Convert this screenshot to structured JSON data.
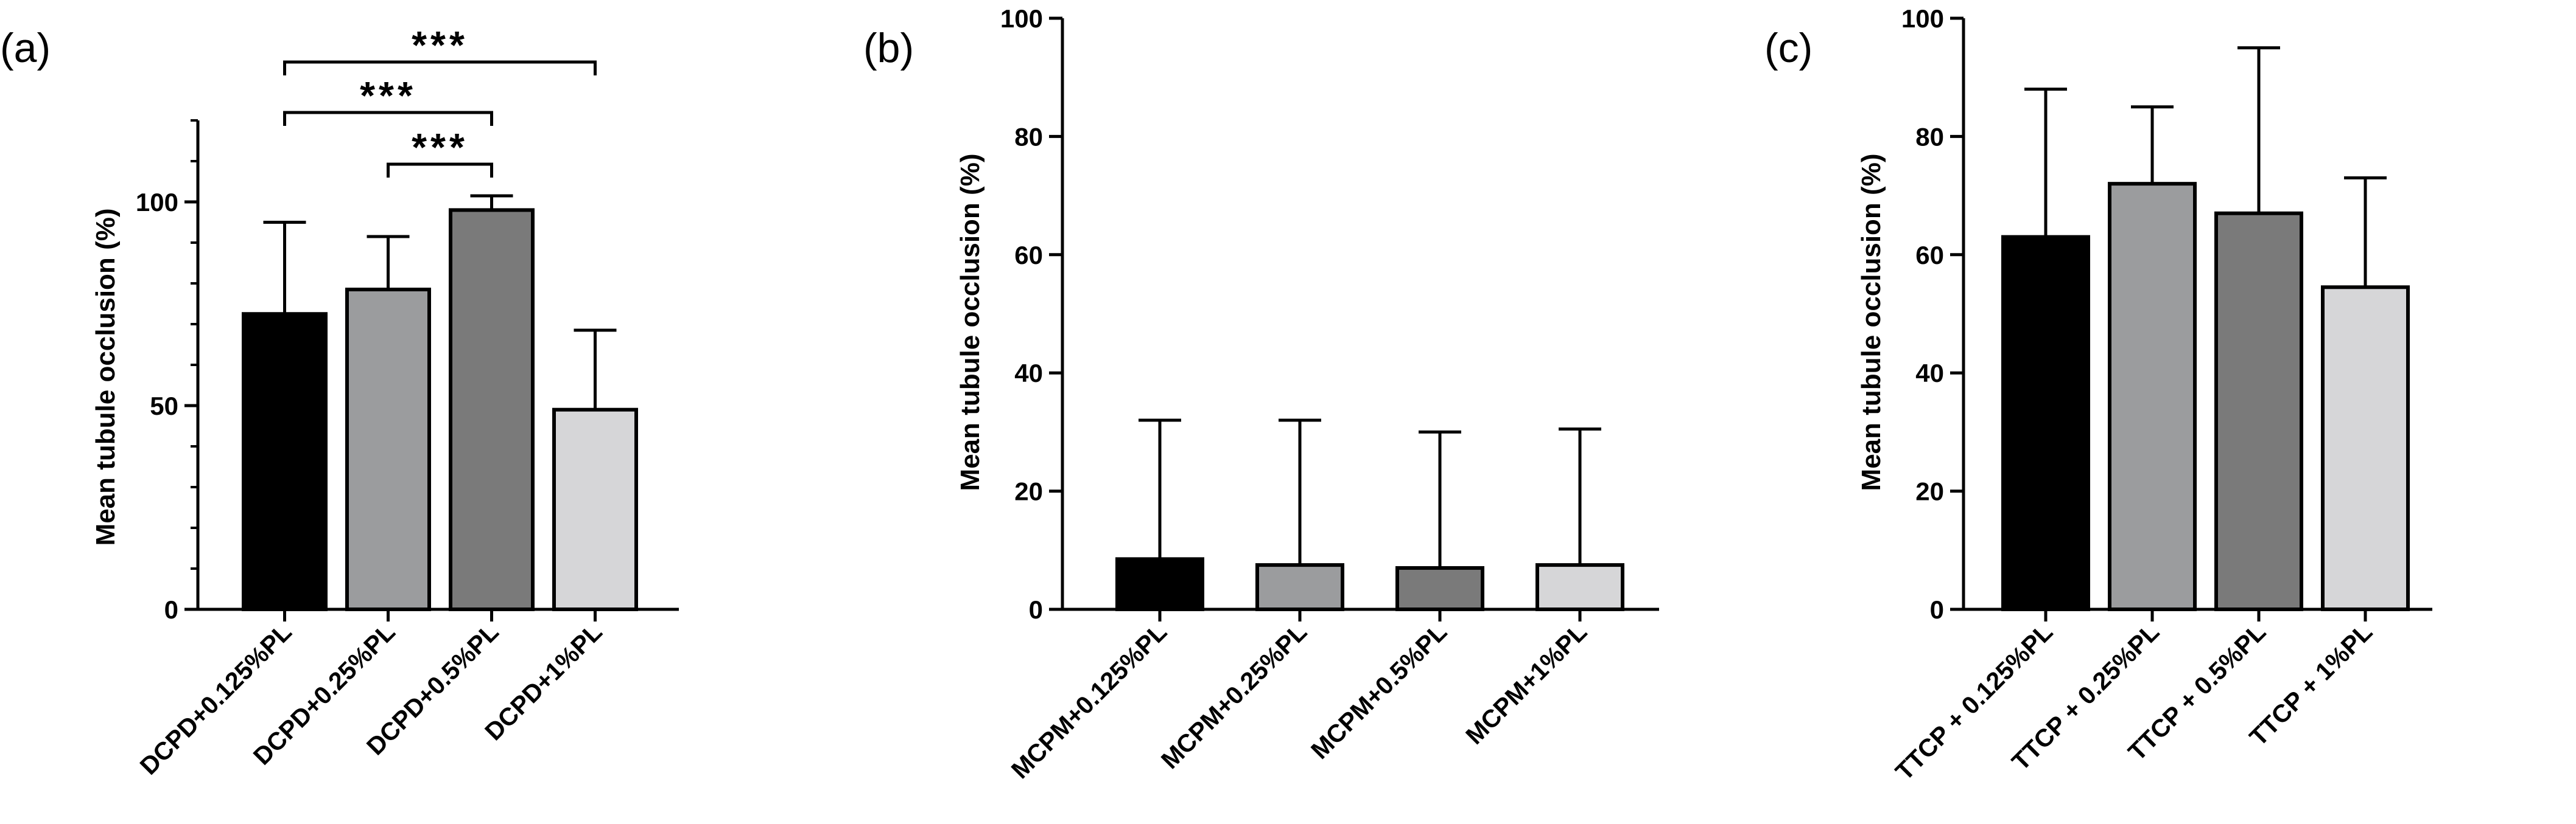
{
  "chart_data": [
    {
      "type": "bar",
      "panel_label": "(a)",
      "ylabel": "Mean tubule occlusion (%)",
      "ylim": [
        0,
        120
      ],
      "yticks": [
        0,
        50,
        100
      ],
      "minor_step": 10,
      "categories": [
        "DCPD+0.125%PL",
        "DCPD+0.25%PL",
        "DCPD+0.5%PL",
        "DCPD+1%PL"
      ],
      "values": [
        72.5,
        78.5,
        98,
        49
      ],
      "errors": [
        22.5,
        13,
        3.5,
        19.5
      ],
      "colors": [
        "#000000",
        "#9b9c9e",
        "#7a7a7a",
        "#d6d6d8"
      ],
      "significance": [
        {
          "from": 0,
          "to": 3,
          "label": "***"
        },
        {
          "from": 0,
          "to": 2,
          "label": "***"
        },
        {
          "from": 1,
          "to": 2,
          "label": "***"
        }
      ]
    },
    {
      "type": "bar",
      "panel_label": "(b)",
      "ylabel": "Mean tubule occlusion (%)",
      "ylim": [
        0,
        100
      ],
      "yticks": [
        0,
        20,
        40,
        60,
        80,
        100
      ],
      "categories": [
        "MCPM+0.125%PL",
        "MCPM+0.25%PL",
        "MCPM+0.5%PL",
        "MCPM+1%PL"
      ],
      "values": [
        8.5,
        7.5,
        7,
        7.5
      ],
      "errors": [
        23.5,
        24.5,
        23,
        23
      ],
      "colors": [
        "#000000",
        "#9b9c9e",
        "#7a7a7a",
        "#d6d6d8"
      ],
      "significance": []
    },
    {
      "type": "bar",
      "panel_label": "(c)",
      "ylabel": "Mean tubule occlusion (%)",
      "ylim": [
        0,
        100
      ],
      "yticks": [
        0,
        20,
        40,
        60,
        80,
        100
      ],
      "categories": [
        "TTCP + 0.125%PL",
        "TTCP + 0.25%PL",
        "TTCP + 0.5%PL",
        "TTCP + 1%PL"
      ],
      "values": [
        63,
        72,
        67,
        54.5
      ],
      "errors": [
        25,
        13,
        28,
        18.5
      ],
      "colors": [
        "#000000",
        "#9b9c9e",
        "#7a7a7a",
        "#d6d6d8"
      ],
      "significance": []
    }
  ]
}
